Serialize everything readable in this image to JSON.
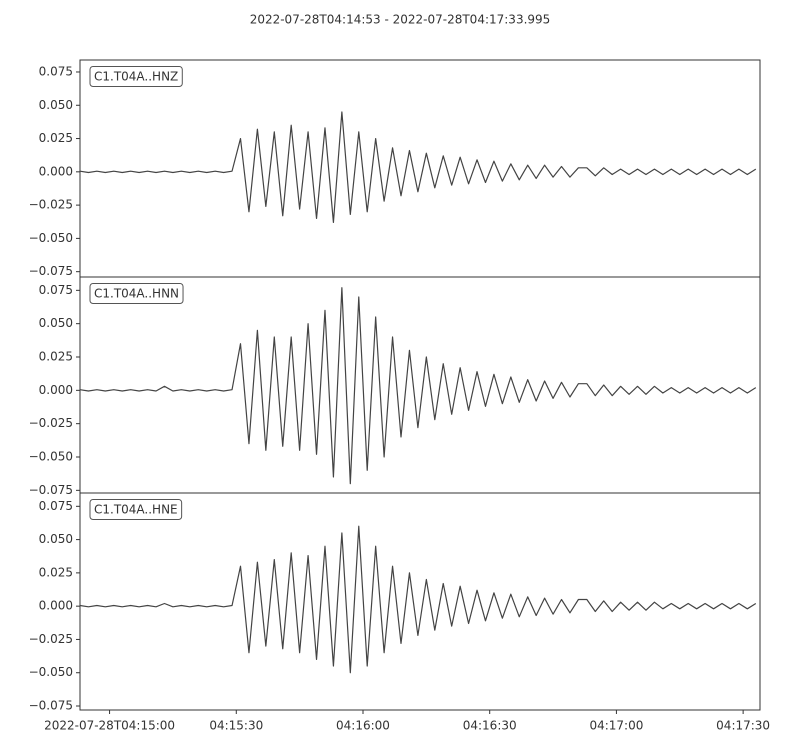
{
  "title": "2022-07-28T04:14:53  -  2022-07-28T04:17:33.995",
  "chart_data": [
    {
      "type": "line",
      "label": "C1.T04A..HNZ",
      "color": "#444444",
      "xlim": [
        "2022-07-28T04:14:53",
        "2022-07-28T04:17:33.995"
      ],
      "ylim": [
        -0.079,
        0.084
      ],
      "yticks": [
        {
          "value": -0.075,
          "label": "−0.075"
        },
        {
          "value": -0.05,
          "label": "−0.050"
        },
        {
          "value": -0.025,
          "label": "−0.025"
        },
        {
          "value": 0,
          "label": "0.000"
        },
        {
          "value": 0.025,
          "label": "0.025"
        },
        {
          "value": 0.05,
          "label": "0.050"
        },
        {
          "value": 0.075,
          "label": "0.075"
        }
      ],
      "x": [
        "2022-07-28T04:14:53",
        "2022-07-28T04:14:55",
        "2022-07-28T04:14:57",
        "2022-07-28T04:14:59",
        "2022-07-28T04:15:01",
        "2022-07-28T04:15:03",
        "2022-07-28T04:15:05",
        "2022-07-28T04:15:07",
        "2022-07-28T04:15:09",
        "2022-07-28T04:15:11",
        "2022-07-28T04:15:13",
        "2022-07-28T04:15:15",
        "2022-07-28T04:15:17",
        "2022-07-28T04:15:19",
        "2022-07-28T04:15:21",
        "2022-07-28T04:15:23",
        "2022-07-28T04:15:25",
        "2022-07-28T04:15:27",
        "2022-07-28T04:15:29",
        "2022-07-28T04:15:31",
        "2022-07-28T04:15:33",
        "2022-07-28T04:15:35",
        "2022-07-28T04:15:37",
        "2022-07-28T04:15:39",
        "2022-07-28T04:15:41",
        "2022-07-28T04:15:43",
        "2022-07-28T04:15:45",
        "2022-07-28T04:15:47",
        "2022-07-28T04:15:49",
        "2022-07-28T04:15:51",
        "2022-07-28T04:15:53",
        "2022-07-28T04:15:55",
        "2022-07-28T04:15:57",
        "2022-07-28T04:15:59",
        "2022-07-28T04:16:01",
        "2022-07-28T04:16:03",
        "2022-07-28T04:16:05",
        "2022-07-28T04:16:07",
        "2022-07-28T04:16:09",
        "2022-07-28T04:16:11",
        "2022-07-28T04:16:13",
        "2022-07-28T04:16:15",
        "2022-07-28T04:16:17",
        "2022-07-28T04:16:19",
        "2022-07-28T04:16:21",
        "2022-07-28T04:16:23",
        "2022-07-28T04:16:25",
        "2022-07-28T04:16:27",
        "2022-07-28T04:16:29",
        "2022-07-28T04:16:31",
        "2022-07-28T04:16:33",
        "2022-07-28T04:16:35",
        "2022-07-28T04:16:37",
        "2022-07-28T04:16:39",
        "2022-07-28T04:16:41",
        "2022-07-28T04:16:43",
        "2022-07-28T04:16:45",
        "2022-07-28T04:16:47",
        "2022-07-28T04:16:49",
        "2022-07-28T04:16:51",
        "2022-07-28T04:16:53",
        "2022-07-28T04:16:55",
        "2022-07-28T04:16:57",
        "2022-07-28T04:16:59",
        "2022-07-28T04:17:01",
        "2022-07-28T04:17:03",
        "2022-07-28T04:17:05",
        "2022-07-28T04:17:07",
        "2022-07-28T04:17:09",
        "2022-07-28T04:17:11",
        "2022-07-28T04:17:13",
        "2022-07-28T04:17:15",
        "2022-07-28T04:17:17",
        "2022-07-28T04:17:19",
        "2022-07-28T04:17:21",
        "2022-07-28T04:17:23",
        "2022-07-28T04:17:25",
        "2022-07-28T04:17:27",
        "2022-07-28T04:17:29",
        "2022-07-28T04:17:31",
        "2022-07-28T04:17:33"
      ],
      "values": [
        0.0005,
        -0.0005,
        0.0005,
        -0.0005,
        0.0005,
        -0.0005,
        0.0005,
        -0.0005,
        0.0005,
        -0.0005,
        0.0005,
        -0.0005,
        0.0005,
        -0.0005,
        0.0005,
        -0.0005,
        0.0005,
        -0.0005,
        0.0005,
        0.025,
        -0.03,
        0.032,
        -0.026,
        0.03,
        -0.033,
        0.035,
        -0.028,
        0.03,
        -0.035,
        0.033,
        -0.038,
        0.045,
        -0.032,
        0.03,
        -0.03,
        0.025,
        -0.022,
        0.018,
        -0.018,
        0.016,
        -0.015,
        0.014,
        -0.012,
        0.012,
        -0.01,
        0.011,
        -0.009,
        0.009,
        -0.008,
        0.008,
        -0.007,
        0.006,
        -0.006,
        0.005,
        -0.005,
        0.005,
        -0.004,
        0.004,
        -0.004,
        0.003,
        0.003,
        -0.003,
        0.003,
        -0.002,
        0.002,
        -0.002,
        0.002,
        -0.002,
        0.002,
        -0.002,
        0.002,
        -0.002,
        0.002,
        -0.002,
        0.002,
        -0.002,
        0.002,
        -0.002,
        0.002,
        -0.002,
        0.002
      ]
    },
    {
      "type": "line",
      "label": "C1.T04A..HNN",
      "color": "#444444",
      "xlim": [
        "2022-07-28T04:14:53",
        "2022-07-28T04:17:33.995"
      ],
      "ylim": [
        -0.077,
        0.085
      ],
      "yticks": [
        {
          "value": -0.075,
          "label": "−0.075"
        },
        {
          "value": -0.05,
          "label": "−0.050"
        },
        {
          "value": -0.025,
          "label": "−0.025"
        },
        {
          "value": 0,
          "label": "0.000"
        },
        {
          "value": 0.025,
          "label": "0.025"
        },
        {
          "value": 0.05,
          "label": "0.050"
        },
        {
          "value": 0.075,
          "label": "0.075"
        }
      ],
      "x": [
        "2022-07-28T04:14:53",
        "2022-07-28T04:14:55",
        "2022-07-28T04:14:57",
        "2022-07-28T04:14:59",
        "2022-07-28T04:15:01",
        "2022-07-28T04:15:03",
        "2022-07-28T04:15:05",
        "2022-07-28T04:15:07",
        "2022-07-28T04:15:09",
        "2022-07-28T04:15:11",
        "2022-07-28T04:15:13",
        "2022-07-28T04:15:15",
        "2022-07-28T04:15:17",
        "2022-07-28T04:15:19",
        "2022-07-28T04:15:21",
        "2022-07-28T04:15:23",
        "2022-07-28T04:15:25",
        "2022-07-28T04:15:27",
        "2022-07-28T04:15:29",
        "2022-07-28T04:15:31",
        "2022-07-28T04:15:33",
        "2022-07-28T04:15:35",
        "2022-07-28T04:15:37",
        "2022-07-28T04:15:39",
        "2022-07-28T04:15:41",
        "2022-07-28T04:15:43",
        "2022-07-28T04:15:45",
        "2022-07-28T04:15:47",
        "2022-07-28T04:15:49",
        "2022-07-28T04:15:51",
        "2022-07-28T04:15:53",
        "2022-07-28T04:15:55",
        "2022-07-28T04:15:57",
        "2022-07-28T04:15:59",
        "2022-07-28T04:16:01",
        "2022-07-28T04:16:03",
        "2022-07-28T04:16:05",
        "2022-07-28T04:16:07",
        "2022-07-28T04:16:09",
        "2022-07-28T04:16:11",
        "2022-07-28T04:16:13",
        "2022-07-28T04:16:15",
        "2022-07-28T04:16:17",
        "2022-07-28T04:16:19",
        "2022-07-28T04:16:21",
        "2022-07-28T04:16:23",
        "2022-07-28T04:16:25",
        "2022-07-28T04:16:27",
        "2022-07-28T04:16:29",
        "2022-07-28T04:16:31",
        "2022-07-28T04:16:33",
        "2022-07-28T04:16:35",
        "2022-07-28T04:16:37",
        "2022-07-28T04:16:39",
        "2022-07-28T04:16:41",
        "2022-07-28T04:16:43",
        "2022-07-28T04:16:45",
        "2022-07-28T04:16:47",
        "2022-07-28T04:16:49",
        "2022-07-28T04:16:51",
        "2022-07-28T04:16:53",
        "2022-07-28T04:16:55",
        "2022-07-28T04:16:57",
        "2022-07-28T04:16:59",
        "2022-07-28T04:17:01",
        "2022-07-28T04:17:03",
        "2022-07-28T04:17:05",
        "2022-07-28T04:17:07",
        "2022-07-28T04:17:09",
        "2022-07-28T04:17:11",
        "2022-07-28T04:17:13",
        "2022-07-28T04:17:15",
        "2022-07-28T04:17:17",
        "2022-07-28T04:17:19",
        "2022-07-28T04:17:21",
        "2022-07-28T04:17:23",
        "2022-07-28T04:17:25",
        "2022-07-28T04:17:27",
        "2022-07-28T04:17:29",
        "2022-07-28T04:17:31",
        "2022-07-28T04:17:33"
      ],
      "values": [
        0.0005,
        -0.0005,
        0.0005,
        -0.0005,
        0.0005,
        -0.0005,
        0.0005,
        -0.0005,
        0.0005,
        -0.0005,
        0.003,
        -0.0005,
        0.0005,
        -0.0005,
        0.0005,
        -0.0005,
        0.0005,
        -0.0005,
        0.0005,
        0.035,
        -0.04,
        0.045,
        -0.045,
        0.04,
        -0.042,
        0.04,
        -0.045,
        0.05,
        -0.048,
        0.06,
        -0.065,
        0.077,
        -0.07,
        0.07,
        -0.06,
        0.055,
        -0.05,
        0.04,
        -0.035,
        0.03,
        -0.028,
        0.025,
        -0.022,
        0.02,
        -0.018,
        0.017,
        -0.015,
        0.014,
        -0.012,
        0.012,
        -0.01,
        0.01,
        -0.009,
        0.008,
        -0.008,
        0.007,
        -0.006,
        0.006,
        -0.005,
        0.005,
        0.005,
        -0.004,
        0.004,
        -0.004,
        0.003,
        -0.003,
        0.003,
        -0.003,
        0.003,
        -0.002,
        0.002,
        -0.002,
        0.002,
        -0.002,
        0.002,
        -0.002,
        0.002,
        -0.002,
        0.002,
        -0.002,
        0.002
      ]
    },
    {
      "type": "line",
      "label": "C1.T04A..HNE",
      "color": "#444444",
      "xlim": [
        "2022-07-28T04:14:53",
        "2022-07-28T04:17:33.995"
      ],
      "ylim": [
        -0.078,
        0.085
      ],
      "yticks": [
        {
          "value": -0.075,
          "label": "−0.075"
        },
        {
          "value": -0.05,
          "label": "−0.050"
        },
        {
          "value": -0.025,
          "label": "−0.025"
        },
        {
          "value": 0,
          "label": "0.000"
        },
        {
          "value": 0.025,
          "label": "0.025"
        },
        {
          "value": 0.05,
          "label": "0.050"
        },
        {
          "value": 0.075,
          "label": "0.075"
        }
      ],
      "xticks": [
        {
          "value": "2022-07-28T04:15:00",
          "label": "2022-07-28T04:15:00"
        },
        {
          "value": "2022-07-28T04:15:30",
          "label": "04:15:30"
        },
        {
          "value": "2022-07-28T04:16:00",
          "label": "04:16:00"
        },
        {
          "value": "2022-07-28T04:16:30",
          "label": "04:16:30"
        },
        {
          "value": "2022-07-28T04:17:00",
          "label": "04:17:00"
        },
        {
          "value": "2022-07-28T04:17:30",
          "label": "04:17:30"
        }
      ],
      "x": [
        "2022-07-28T04:14:53",
        "2022-07-28T04:14:55",
        "2022-07-28T04:14:57",
        "2022-07-28T04:14:59",
        "2022-07-28T04:15:01",
        "2022-07-28T04:15:03",
        "2022-07-28T04:15:05",
        "2022-07-28T04:15:07",
        "2022-07-28T04:15:09",
        "2022-07-28T04:15:11",
        "2022-07-28T04:15:13",
        "2022-07-28T04:15:15",
        "2022-07-28T04:15:17",
        "2022-07-28T04:15:19",
        "2022-07-28T04:15:21",
        "2022-07-28T04:15:23",
        "2022-07-28T04:15:25",
        "2022-07-28T04:15:27",
        "2022-07-28T04:15:29",
        "2022-07-28T04:15:31",
        "2022-07-28T04:15:33",
        "2022-07-28T04:15:35",
        "2022-07-28T04:15:37",
        "2022-07-28T04:15:39",
        "2022-07-28T04:15:41",
        "2022-07-28T04:15:43",
        "2022-07-28T04:15:45",
        "2022-07-28T04:15:47",
        "2022-07-28T04:15:49",
        "2022-07-28T04:15:51",
        "2022-07-28T04:15:53",
        "2022-07-28T04:15:55",
        "2022-07-28T04:15:57",
        "2022-07-28T04:15:59",
        "2022-07-28T04:16:01",
        "2022-07-28T04:16:03",
        "2022-07-28T04:16:05",
        "2022-07-28T04:16:07",
        "2022-07-28T04:16:09",
        "2022-07-28T04:16:11",
        "2022-07-28T04:16:13",
        "2022-07-28T04:16:15",
        "2022-07-28T04:16:17",
        "2022-07-28T04:16:19",
        "2022-07-28T04:16:21",
        "2022-07-28T04:16:23",
        "2022-07-28T04:16:25",
        "2022-07-28T04:16:27",
        "2022-07-28T04:16:29",
        "2022-07-28T04:16:31",
        "2022-07-28T04:16:33",
        "2022-07-28T04:16:35",
        "2022-07-28T04:16:37",
        "2022-07-28T04:16:39",
        "2022-07-28T04:16:41",
        "2022-07-28T04:16:43",
        "2022-07-28T04:16:45",
        "2022-07-28T04:16:47",
        "2022-07-28T04:16:49",
        "2022-07-28T04:16:51",
        "2022-07-28T04:16:53",
        "2022-07-28T04:16:55",
        "2022-07-28T04:16:57",
        "2022-07-28T04:16:59",
        "2022-07-28T04:17:01",
        "2022-07-28T04:17:03",
        "2022-07-28T04:17:05",
        "2022-07-28T04:17:07",
        "2022-07-28T04:17:09",
        "2022-07-28T04:17:11",
        "2022-07-28T04:17:13",
        "2022-07-28T04:17:15",
        "2022-07-28T04:17:17",
        "2022-07-28T04:17:19",
        "2022-07-28T04:17:21",
        "2022-07-28T04:17:23",
        "2022-07-28T04:17:25",
        "2022-07-28T04:17:27",
        "2022-07-28T04:17:29",
        "2022-07-28T04:17:31",
        "2022-07-28T04:17:33"
      ],
      "values": [
        0.0005,
        -0.0005,
        0.0005,
        -0.0005,
        0.0005,
        -0.0005,
        0.0005,
        -0.0005,
        0.0005,
        -0.0005,
        0.002,
        -0.0005,
        0.0005,
        -0.0005,
        0.0005,
        -0.0005,
        0.0005,
        -0.0005,
        0.0005,
        0.03,
        -0.035,
        0.033,
        -0.03,
        0.035,
        -0.032,
        0.04,
        -0.035,
        0.038,
        -0.04,
        0.045,
        -0.045,
        0.055,
        -0.05,
        0.06,
        -0.045,
        0.045,
        -0.035,
        0.03,
        -0.028,
        0.025,
        -0.022,
        0.02,
        -0.018,
        0.017,
        -0.015,
        0.015,
        -0.013,
        0.012,
        -0.011,
        0.01,
        -0.009,
        0.009,
        -0.008,
        0.007,
        -0.007,
        0.006,
        -0.006,
        0.005,
        -0.005,
        0.005,
        0.005,
        -0.004,
        0.004,
        -0.004,
        0.003,
        -0.003,
        0.003,
        -0.003,
        0.003,
        -0.002,
        0.002,
        -0.002,
        0.002,
        -0.002,
        0.002,
        -0.002,
        0.002,
        -0.002,
        0.002,
        -0.002,
        0.002
      ]
    }
  ]
}
